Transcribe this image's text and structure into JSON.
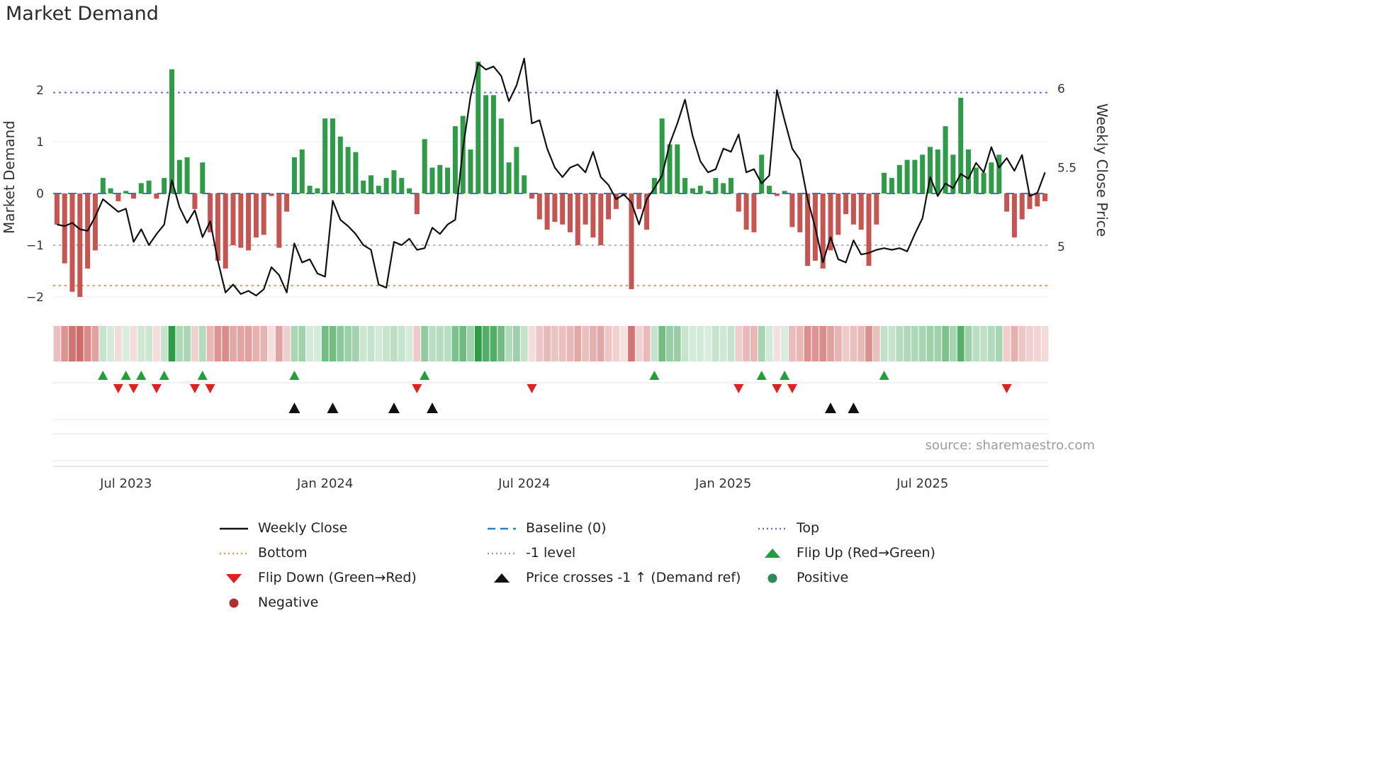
{
  "title": "Market Demand",
  "source": "source: sharemaestro.com",
  "colors": {
    "positive_bar": "#2e9b47",
    "negative_bar": "#c75450",
    "price_line": "#111111",
    "baseline": "#2e7ebb",
    "top_line": "#6b6bd6",
    "minus1_line": "#9a9aae",
    "bottom_line": "#f49f2d",
    "flip_up": "#21a038",
    "flip_down": "#df2020",
    "price_cross": "#111111",
    "positive_dot": "#2e8b57",
    "negative_dot": "#b03030",
    "grid": "#ededed",
    "panel_line": "#e3e3e3",
    "axis_line": "#cfcfcf",
    "tick_text": "#333333",
    "source_text": "#9e9e9e"
  },
  "chart_data": {
    "type": "bar",
    "title": "Market Demand",
    "x_axis": {
      "tick_indices": [
        9,
        35,
        61,
        87,
        113
      ],
      "tick_labels": [
        "Jul 2023",
        "Jan 2024",
        "Jul 2024",
        "Jan 2025",
        "Jul 2025"
      ]
    },
    "left_axis": {
      "label": "Market Demand",
      "ticks": [
        "2",
        "1",
        "0",
        "−1",
        "−2"
      ],
      "tick_values": [
        2,
        1,
        0,
        -1,
        -2
      ],
      "range": [
        -2.3,
        2.9
      ]
    },
    "right_axis": {
      "label": "Weekly Close Price",
      "ticks": [
        "6",
        "5.5",
        "5"
      ],
      "tick_values": [
        6,
        5.5,
        5
      ],
      "range": [
        4.6,
        6.3
      ]
    },
    "reference_lines": {
      "baseline": 0,
      "top": 1.95,
      "minus1": -1.0,
      "bottom": -1.78
    },
    "series": [
      {
        "name": "Market Demand",
        "type": "bar",
        "axis": "left",
        "values": [
          -0.6,
          -1.35,
          -1.9,
          -2.0,
          -1.45,
          -1.1,
          0.3,
          0.1,
          -0.15,
          0.05,
          -0.1,
          0.2,
          0.25,
          -0.1,
          0.3,
          2.4,
          0.65,
          0.7,
          -0.3,
          0.6,
          -0.75,
          -1.3,
          -1.45,
          -1.0,
          -1.05,
          -1.1,
          -0.85,
          -0.8,
          -0.05,
          -1.05,
          -0.35,
          0.7,
          0.85,
          0.15,
          0.1,
          1.45,
          1.45,
          1.1,
          0.9,
          0.8,
          0.25,
          0.35,
          0.15,
          0.3,
          0.45,
          0.3,
          0.1,
          -0.4,
          1.05,
          0.5,
          0.55,
          0.5,
          1.3,
          1.5,
          0.85,
          2.55,
          1.9,
          1.9,
          1.45,
          0.6,
          0.9,
          0.35,
          -0.1,
          -0.5,
          -0.7,
          -0.55,
          -0.6,
          -0.75,
          -1.0,
          -0.6,
          -0.85,
          -1.0,
          -0.5,
          -0.3,
          -0.05,
          -1.85,
          -0.3,
          -0.7,
          0.3,
          1.45,
          0.95,
          0.95,
          0.3,
          0.1,
          0.15,
          0.05,
          0.3,
          0.2,
          0.3,
          -0.35,
          -0.7,
          -0.75,
          0.75,
          0.15,
          -0.05,
          0.05,
          -0.65,
          -0.75,
          -1.4,
          -1.3,
          -1.45,
          -1.1,
          -0.8,
          -0.4,
          -0.6,
          -0.7,
          -1.4,
          -0.6,
          0.4,
          0.3,
          0.55,
          0.65,
          0.65,
          0.75,
          0.9,
          0.85,
          1.3,
          0.75,
          1.85,
          0.85,
          0.5,
          0.4,
          0.6,
          0.75,
          -0.35,
          -0.85,
          -0.5,
          -0.3,
          -0.25,
          -0.15
        ]
      },
      {
        "name": "Weekly Close",
        "type": "line",
        "axis": "right",
        "values": [
          5.14,
          5.13,
          5.15,
          5.11,
          5.1,
          5.19,
          5.3,
          5.26,
          5.22,
          5.24,
          5.03,
          5.11,
          5.01,
          5.08,
          5.14,
          5.42,
          5.25,
          5.15,
          5.23,
          5.06,
          5.16,
          4.91,
          4.71,
          4.76,
          4.7,
          4.72,
          4.69,
          4.73,
          4.87,
          4.82,
          4.71,
          5.02,
          4.9,
          4.92,
          4.83,
          4.81,
          5.29,
          5.17,
          5.13,
          5.08,
          5.01,
          4.98,
          4.76,
          4.74,
          5.03,
          5.01,
          5.05,
          4.98,
          4.99,
          5.12,
          5.08,
          5.14,
          5.17,
          5.62,
          5.95,
          6.16,
          6.12,
          6.14,
          6.08,
          5.92,
          6.02,
          6.19,
          5.78,
          5.8,
          5.62,
          5.5,
          5.44,
          5.5,
          5.52,
          5.47,
          5.6,
          5.44,
          5.39,
          5.3,
          5.33,
          5.28,
          5.14,
          5.3,
          5.37,
          5.45,
          5.65,
          5.78,
          5.93,
          5.7,
          5.54,
          5.47,
          5.49,
          5.62,
          5.6,
          5.71,
          5.47,
          5.49,
          5.4,
          5.45,
          5.99,
          5.8,
          5.62,
          5.55,
          5.3,
          5.12,
          4.9,
          5.06,
          4.92,
          4.9,
          5.04,
          4.95,
          4.96,
          4.98,
          4.99,
          4.98,
          4.99,
          4.97,
          5.08,
          5.18,
          5.44,
          5.32,
          5.4,
          5.37,
          5.46,
          5.43,
          5.53,
          5.47,
          5.63,
          5.5,
          5.56,
          5.48,
          5.58,
          5.32,
          5.34,
          5.47
        ]
      }
    ],
    "markers": {
      "price_cross_up_indices": [
        31,
        36,
        44,
        49,
        101,
        104
      ]
    }
  },
  "legend": {
    "items": [
      {
        "label": "Weekly Close",
        "swatch": "line",
        "color": "#111111"
      },
      {
        "label": "Baseline (0)",
        "swatch": "dash",
        "color": "#2e7ebb"
      },
      {
        "label": "Top",
        "swatch": "dot",
        "color": "#6b6bd6"
      },
      {
        "label": "Bottom",
        "swatch": "dot",
        "color": "#f49f2d"
      },
      {
        "label": "-1 level",
        "swatch": "dot",
        "color": "#9a9a9a"
      },
      {
        "label": "Flip Up (Red→Green)",
        "swatch": "tri-up",
        "color": "#21a038"
      },
      {
        "label": "Flip Down (Green→Red)",
        "swatch": "tri-down",
        "color": "#df2020"
      },
      {
        "label": "Price crosses -1 ↑ (Demand ref)",
        "swatch": "tri-up",
        "color": "#111111"
      },
      {
        "label": "Positive",
        "swatch": "circle",
        "color": "#2e8b57"
      },
      {
        "label": "Negative",
        "swatch": "circle",
        "color": "#b03030"
      }
    ]
  }
}
